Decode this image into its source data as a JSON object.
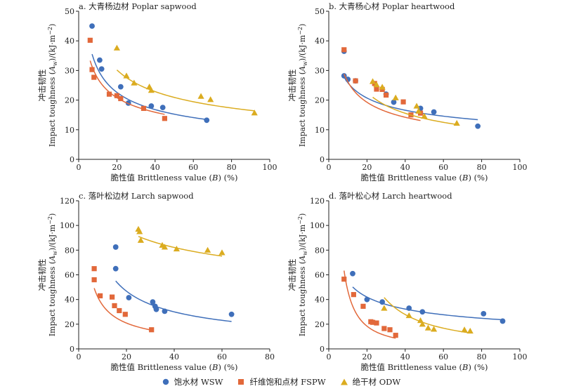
{
  "colors": {
    "series_blue": "#3f6fba",
    "series_orange": "#e2683a",
    "series_gold": "#dbac20"
  },
  "legend": [
    {
      "label": "饱水材 WSW",
      "marker": "circle",
      "color": "#3f6fba"
    },
    {
      "label": "纤维饱和点材 FSPW",
      "marker": "square",
      "color": "#e2683a"
    },
    {
      "label": "绝干材 ODW",
      "marker": "triangle",
      "color": "#dbac20"
    }
  ],
  "chart_data": [
    {
      "type": "scatter",
      "title": "a. 大青杨边材 Poplar sapwood",
      "xlabel_cn": "脆性值",
      "xlabel_en": "Brittleness value (",
      "xlabel_var": "B",
      "xlabel_tail": ") (%)",
      "ylabel_cn": "冲击韧性",
      "ylabel_en": "Impact toughness (",
      "ylabel_var": "A",
      "ylabel_sub": "w",
      "ylabel_tail": ")/(kJ·m",
      "ylabel_sup": "−2",
      "ylabel_close": ")",
      "xlim": [
        0,
        100
      ],
      "ylim": [
        0,
        50
      ],
      "xticks": [
        0,
        20,
        40,
        60,
        80,
        100
      ],
      "yticks": [
        0,
        10,
        20,
        30,
        40,
        50
      ],
      "series": [
        {
          "marker": "circle",
          "color": "#3f6fba",
          "points": [
            [
              7,
              45
            ],
            [
              11,
              33.5
            ],
            [
              12,
              30.5
            ],
            [
              22,
              24.5
            ],
            [
              26,
              19
            ],
            [
              38,
              18
            ],
            [
              44,
              17.5
            ],
            [
              67,
              13.2
            ]
          ],
          "fit": {
            "a": 82,
            "b": -0.43
          }
        },
        {
          "marker": "square",
          "color": "#e2683a",
          "points": [
            [
              6,
              40.2
            ],
            [
              7,
              30.3
            ],
            [
              8,
              27.7
            ],
            [
              16,
              22
            ],
            [
              20,
              21.5
            ],
            [
              22,
              20.5
            ],
            [
              34,
              17.2
            ],
            [
              45,
              13.8
            ]
          ],
          "fit": {
            "a": 67,
            "b": -0.39
          }
        },
        {
          "marker": "triangle",
          "color": "#dbac20",
          "points": [
            [
              20,
              37.6
            ],
            [
              25,
              28.2
            ],
            [
              29,
              25.8
            ],
            [
              37,
              24.5
            ],
            [
              38,
              23.3
            ],
            [
              64,
              21.3
            ],
            [
              69,
              20.2
            ],
            [
              92,
              15.7
            ]
          ],
          "fit": {
            "a": 100,
            "b": -0.4
          }
        }
      ]
    },
    {
      "type": "scatter",
      "title": "b. 大青杨心材 Poplar heartwood",
      "xlabel_cn": "脆性值",
      "xlabel_en": "Brittleness value (",
      "xlabel_var": "B",
      "xlabel_tail": ") (%)",
      "ylabel_cn": "冲击韧性",
      "ylabel_en": "Impact toughness (",
      "ylabel_var": "A",
      "ylabel_sub": "w",
      "ylabel_tail": ")/(kJ·m",
      "ylabel_sup": "−2",
      "ylabel_close": ")",
      "xlim": [
        0,
        100
      ],
      "ylim": [
        0,
        50
      ],
      "xticks": [
        0,
        20,
        40,
        60,
        80,
        100
      ],
      "yticks": [
        0,
        10,
        20,
        30,
        40,
        50
      ],
      "series": [
        {
          "marker": "circle",
          "color": "#3f6fba",
          "points": [
            [
              8,
              36.5
            ],
            [
              8,
              28.2
            ],
            [
              10,
              27
            ],
            [
              14,
              26.5
            ],
            [
              30,
              22
            ],
            [
              34,
              19.3
            ],
            [
              48,
              17.2
            ],
            [
              55,
              16
            ],
            [
              78,
              11.2
            ]
          ],
          "fit": {
            "a": 54,
            "b": -0.32
          }
        },
        {
          "marker": "square",
          "color": "#e2683a",
          "points": [
            [
              8,
              37
            ],
            [
              14,
              26.5
            ],
            [
              24,
              25.6
            ],
            [
              25,
              23.7
            ],
            [
              28,
              23.6
            ],
            [
              30,
              21.7
            ],
            [
              39,
              19.4
            ],
            [
              43,
              15
            ],
            [
              48,
              15.6
            ]
          ],
          "fit": {
            "a": 72,
            "b": -0.44
          }
        },
        {
          "marker": "triangle",
          "color": "#dbac20",
          "points": [
            [
              23,
              26.3
            ],
            [
              25,
              25.2
            ],
            [
              28,
              24.4
            ],
            [
              35,
              20.8
            ],
            [
              46,
              18
            ],
            [
              47,
              16.3
            ],
            [
              50,
              14.6
            ],
            [
              67,
              12.2
            ]
          ],
          "fit": {
            "a": 114,
            "b": -0.54
          }
        }
      ]
    },
    {
      "type": "scatter",
      "title": "c. 落叶松边材 Larch sapwood",
      "xlabel_cn": "脆性值",
      "xlabel_en": "Brittleness value (",
      "xlabel_var": "B",
      "xlabel_tail": ") (%)",
      "ylabel_cn": "冲击韧性",
      "ylabel_en": "Impact toughness (",
      "ylabel_var": "A",
      "ylabel_sub": "w",
      "ylabel_tail": ")/(kJ·m",
      "ylabel_sup": "−2",
      "ylabel_close": ")",
      "xlim": [
        0,
        80
      ],
      "ylim": [
        0,
        120
      ],
      "xticks": [
        0,
        20,
        40,
        60,
        80
      ],
      "yticks": [
        0,
        20,
        40,
        60,
        80,
        100,
        120
      ],
      "series": [
        {
          "marker": "circle",
          "color": "#3f6fba",
          "points": [
            [
              15.5,
              82.5
            ],
            [
              15.5,
              65
            ],
            [
              21,
              41.5
            ],
            [
              31,
              38
            ],
            [
              32,
              34.5
            ],
            [
              32.5,
              32
            ],
            [
              36,
              30.5
            ],
            [
              64,
              28
            ]
          ],
          "fit": {
            "a": 318,
            "b": -0.64
          }
        },
        {
          "marker": "square",
          "color": "#e2683a",
          "points": [
            [
              6.5,
              65
            ],
            [
              6.5,
              56
            ],
            [
              9,
              43
            ],
            [
              14,
              42
            ],
            [
              15,
              35
            ],
            [
              17,
              31
            ],
            [
              19.5,
              28
            ],
            [
              30.5,
              15.5
            ]
          ],
          "fit": {
            "a": 204,
            "b": -0.76
          }
        },
        {
          "marker": "triangle",
          "color": "#dbac20",
          "points": [
            [
              25,
              97
            ],
            [
              25.5,
              95
            ],
            [
              26,
              88
            ],
            [
              35,
              84
            ],
            [
              36,
              82.5
            ],
            [
              41,
              81
            ],
            [
              54,
              80
            ],
            [
              60,
              78
            ]
          ],
          "fit": {
            "a": 185,
            "b": -0.22
          }
        }
      ]
    },
    {
      "type": "scatter",
      "title": "d. 落叶松心材 Larch heartwood",
      "xlabel_cn": "脆性值",
      "xlabel_en": "Brittleness value (",
      "xlabel_var": "B",
      "xlabel_tail": ") (%)",
      "ylabel_cn": "冲击韧性",
      "ylabel_en": "Impact toughness (",
      "ylabel_var": "A",
      "ylabel_sub": "w",
      "ylabel_tail": ")/(kJ·m",
      "ylabel_sup": "−2",
      "ylabel_close": ")",
      "xlim": [
        0,
        100
      ],
      "ylim": [
        0,
        120
      ],
      "xticks": [
        0,
        20,
        40,
        60,
        80,
        100
      ],
      "yticks": [
        0,
        20,
        40,
        60,
        80,
        100,
        120
      ],
      "series": [
        {
          "marker": "circle",
          "color": "#3f6fba",
          "points": [
            [
              12.5,
              61
            ],
            [
              20,
              40
            ],
            [
              28,
              38
            ],
            [
              42,
              33
            ],
            [
              49,
              30
            ],
            [
              81,
              28.5
            ],
            [
              91,
              22.5
            ]
          ],
          "fit": {
            "a": 131,
            "b": -0.38
          }
        },
        {
          "marker": "square",
          "color": "#e2683a",
          "points": [
            [
              8,
              56.5
            ],
            [
              13,
              44
            ],
            [
              18,
              34.5
            ],
            [
              22,
              22
            ],
            [
              23,
              21.5
            ],
            [
              25,
              21
            ],
            [
              29,
              16.5
            ],
            [
              32,
              15.5
            ],
            [
              35,
              11
            ]
          ],
          "fit": {
            "a": 1050,
            "b": -1.35
          }
        },
        {
          "marker": "triangle",
          "color": "#dbac20",
          "points": [
            [
              29,
              33
            ],
            [
              42,
              27
            ],
            [
              48,
              23
            ],
            [
              49,
              20
            ],
            [
              52,
              17
            ],
            [
              55,
              16
            ],
            [
              71,
              15.5
            ],
            [
              74,
              14.5
            ]
          ],
          "fit": {
            "a": 2800,
            "b": -1.25
          }
        }
      ]
    }
  ]
}
